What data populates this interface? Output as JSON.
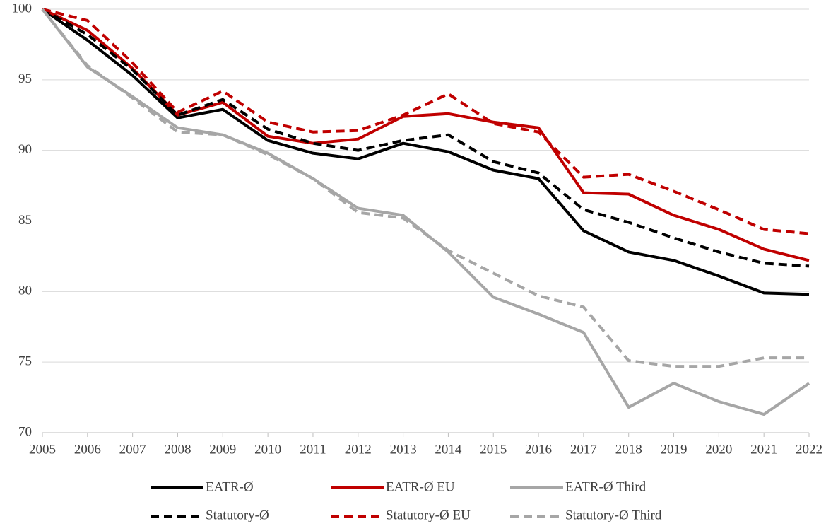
{
  "chart_data": {
    "type": "line",
    "categories": [
      "2005",
      "2006",
      "2007",
      "2008",
      "2009",
      "2010",
      "2011",
      "2012",
      "2013",
      "2014",
      "2015",
      "2016",
      "2017",
      "2018",
      "2019",
      "2020",
      "2021",
      "2022"
    ],
    "ylim": [
      70,
      100
    ],
    "yticks": [
      70,
      75,
      80,
      85,
      90,
      95,
      100
    ],
    "grid": true,
    "legend": "bottom",
    "series": [
      {
        "name": "EATR-Ø",
        "color": "#000000",
        "line_style": "solid",
        "values": [
          100,
          97.8,
          95.3,
          92.3,
          92.9,
          90.7,
          89.8,
          89.4,
          90.5,
          89.9,
          88.6,
          88.0,
          84.3,
          82.8,
          82.2,
          81.1,
          79.9,
          79.8
        ]
      },
      {
        "name": "EATR-Ø EU",
        "color": "#c00000",
        "line_style": "solid",
        "values": [
          100,
          98.5,
          95.8,
          92.5,
          93.4,
          91.0,
          90.5,
          90.8,
          92.4,
          92.6,
          92.0,
          91.6,
          87.0,
          86.9,
          85.4,
          84.4,
          83.0,
          82.2
        ]
      },
      {
        "name": "EATR-Ø Third",
        "color": "#a6a6a6",
        "line_style": "solid",
        "values": [
          100,
          95.9,
          93.8,
          91.6,
          91.1,
          89.8,
          88.0,
          85.9,
          85.4,
          82.8,
          79.6,
          78.4,
          77.1,
          71.8,
          73.5,
          72.2,
          71.3,
          73.5
        ]
      },
      {
        "name": "Statutory-Ø",
        "color": "#000000",
        "line_style": "dashed",
        "values": [
          100,
          98.2,
          95.7,
          92.5,
          93.6,
          91.5,
          90.5,
          90.0,
          90.7,
          91.1,
          89.2,
          88.4,
          85.8,
          84.9,
          83.8,
          82.8,
          82.0,
          81.8
        ]
      },
      {
        "name": "Statutory-Ø EU",
        "color": "#c00000",
        "line_style": "dashed",
        "values": [
          100,
          99.2,
          96.2,
          92.7,
          94.2,
          92.0,
          91.3,
          91.4,
          92.5,
          94.0,
          91.9,
          91.3,
          88.1,
          88.3,
          87.1,
          85.8,
          84.4,
          84.1
        ]
      },
      {
        "name": "Statutory-Ø Third",
        "color": "#a6a6a6",
        "line_style": "dashed",
        "values": [
          100,
          96.0,
          93.7,
          91.3,
          91.1,
          89.7,
          88.0,
          85.6,
          85.2,
          82.9,
          81.3,
          79.7,
          78.9,
          75.1,
          74.7,
          74.7,
          75.3,
          75.3
        ]
      }
    ]
  }
}
